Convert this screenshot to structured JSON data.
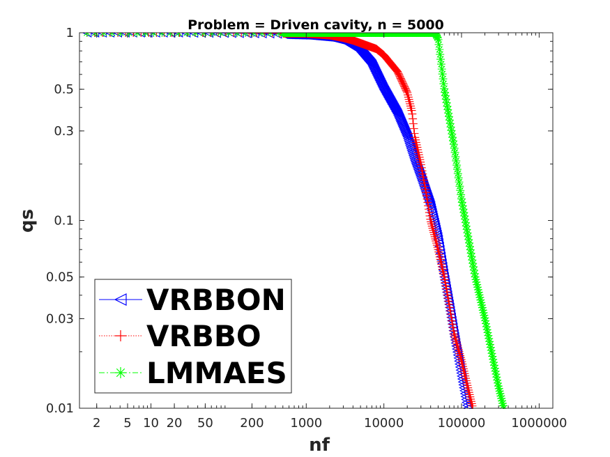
{
  "chart_data": {
    "type": "line",
    "title": "Problem = Driven cavity, n = 5000",
    "xlabel": "nf",
    "ylabel": "qs",
    "xscale": "log",
    "yscale": "log",
    "xlim": [
      1.2,
      1500000
    ],
    "ylim": [
      0.01,
      1
    ],
    "xticks": [
      2,
      5,
      10,
      20,
      50,
      200,
      1000,
      10000,
      100000,
      1000000
    ],
    "xtick_labels": [
      "2",
      "5",
      "10",
      "20",
      "50",
      "200",
      "1000",
      "10000",
      "100000",
      "1000000"
    ],
    "yticks": [
      0.01,
      0.03,
      0.05,
      0.1,
      0.3,
      0.5,
      1
    ],
    "ytick_labels": [
      "0.01",
      "0.03",
      "0.05",
      "0.1",
      "0.3",
      "0.5",
      "1"
    ],
    "legend_position": "bottom-left",
    "series": [
      {
        "name": "VRBBON",
        "color": "#0000ff",
        "marker": "triangle-left",
        "line_style": "solid",
        "x": [
          1.5,
          20,
          100,
          300,
          600,
          1000,
          2000,
          3000,
          5000,
          7000,
          10000,
          15000,
          20000,
          25000,
          30000,
          40000,
          50000,
          60000,
          70000,
          80000,
          100000,
          120000
        ],
        "y": [
          1,
          1,
          0.995,
          0.99,
          0.98,
          0.975,
          0.95,
          0.91,
          0.8,
          0.68,
          0.5,
          0.37,
          0.28,
          0.21,
          0.17,
          0.12,
          0.08,
          0.05,
          0.035,
          0.025,
          0.015,
          0.01
        ]
      },
      {
        "name": "VRBBO",
        "color": "#ff0000",
        "marker": "plus",
        "line_style": "dotted",
        "x": [
          1.5,
          100,
          1000,
          2000,
          3000,
          4000,
          5000,
          8000,
          10000,
          15000,
          20000,
          23000,
          25000,
          30000,
          35000,
          40000,
          50000,
          60000,
          70000,
          80000,
          100000,
          120000,
          140000
        ],
        "y": [
          1,
          1,
          0.99,
          0.97,
          0.94,
          0.91,
          0.88,
          0.82,
          0.76,
          0.62,
          0.48,
          0.38,
          0.28,
          0.2,
          0.14,
          0.1,
          0.07,
          0.05,
          0.035,
          0.025,
          0.018,
          0.013,
          0.01
        ]
      },
      {
        "name": "LMMAES",
        "color": "#00ff00",
        "marker": "asterisk",
        "line_style": "dash-dot",
        "x": [
          1.5,
          10000,
          45000,
          50000,
          60000,
          80000,
          100000,
          150000,
          200000,
          300000,
          350000
        ],
        "y": [
          1,
          1,
          1,
          0.93,
          0.5,
          0.25,
          0.13,
          0.05,
          0.03,
          0.013,
          0.01
        ]
      }
    ]
  }
}
